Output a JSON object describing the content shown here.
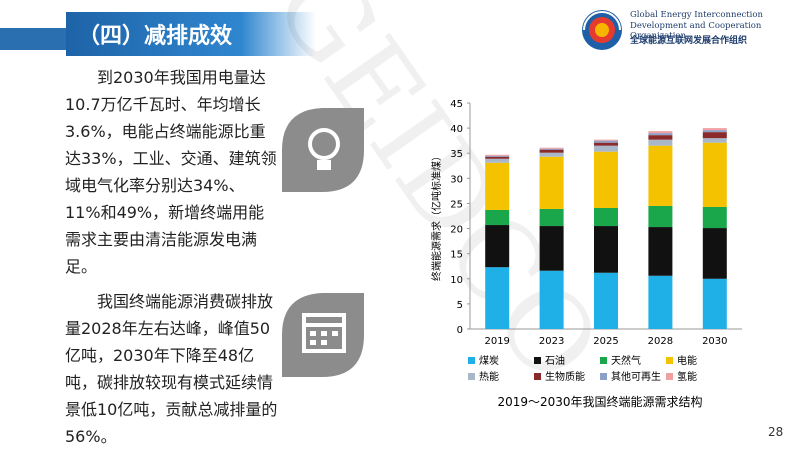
{
  "header": {
    "title": "（四）减排成效"
  },
  "logo": {
    "line1": "Global Energy Interconnection",
    "line2": "Development and Cooperation Organization",
    "line3": "全球能源互联网发展合作组织"
  },
  "paragraphs": [
    "到2030年我国用电量达10.7万亿千瓦时、年均增长3.6%，电能占终端能源比重达33%，工业、交通、建筑领域电气化率分别达34%、11%和49%，新增终端用能需求主要由清洁能源发电满足。",
    "我国终端能源消费碳排放量2028年左右达峰，峰值50亿吨，2030年下降至48亿吨，碳排放较现有模式延续情景低10亿吨，贡献总减排量的56%。"
  ],
  "watermark": "GEIDCO",
  "page_number": "28",
  "chart_data": {
    "type": "bar",
    "stacked": true,
    "title": "2019～2030年我国终端能源需求结构",
    "ylabel": "终端能源需求（亿吨标准煤）",
    "categories": [
      "2019",
      "2023",
      "2025",
      "2028",
      "2030"
    ],
    "series": [
      {
        "name": "煤炭",
        "color": "#1fb0e8",
        "values": [
          12.3,
          11.6,
          11.2,
          10.6,
          10.0
        ]
      },
      {
        "name": "石油",
        "color": "#111111",
        "values": [
          8.4,
          8.9,
          9.3,
          9.7,
          10.1
        ]
      },
      {
        "name": "天然气",
        "color": "#1aa64a",
        "values": [
          3.0,
          3.4,
          3.6,
          4.2,
          4.2
        ]
      },
      {
        "name": "电能",
        "color": "#f5c200",
        "values": [
          9.4,
          10.4,
          11.2,
          12.0,
          12.8
        ]
      },
      {
        "name": "热能",
        "color": "#a9b8c8",
        "values": [
          0.8,
          0.8,
          1.2,
          1.2,
          0.9
        ]
      },
      {
        "name": "生物质能",
        "color": "#8b2a2a",
        "values": [
          0.4,
          0.6,
          0.6,
          0.9,
          1.2
        ]
      },
      {
        "name": "其他可再生",
        "color": "#8aa0c8",
        "values": [
          0.2,
          0.2,
          0.4,
          0.4,
          0.4
        ]
      },
      {
        "name": "氢能",
        "color": "#f0a0a0",
        "values": [
          0.2,
          0.2,
          0.2,
          0.4,
          0.4
        ]
      }
    ],
    "ylim": [
      0,
      45
    ],
    "yticks": [
      0,
      5,
      10,
      15,
      20,
      25,
      30,
      35,
      40,
      45
    ],
    "grid": false
  }
}
